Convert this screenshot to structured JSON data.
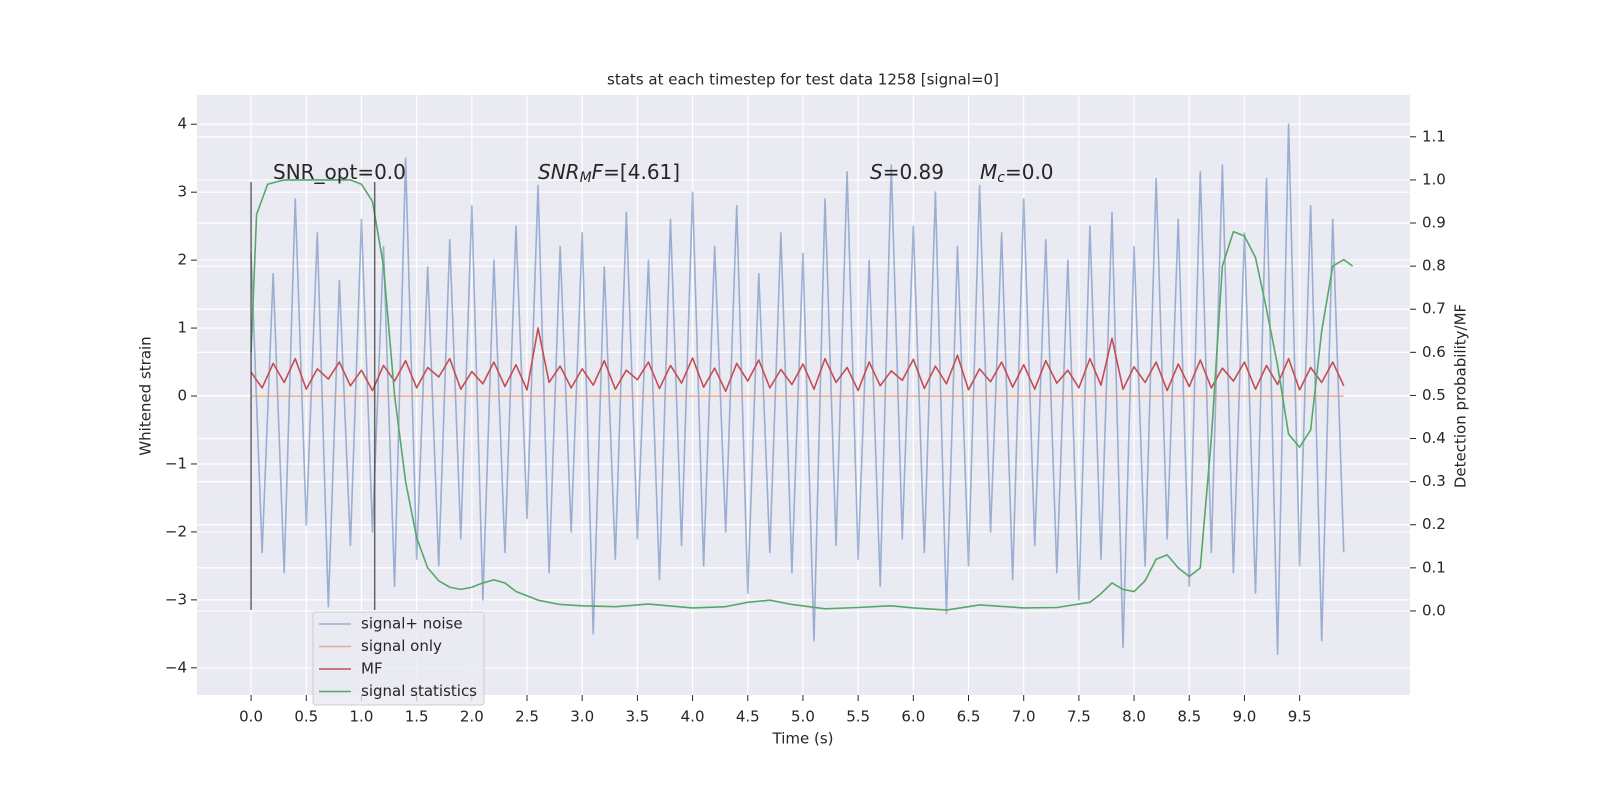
{
  "chart_data": {
    "type": "line",
    "title": "stats at each timestep for test data 1258 [signal=0]",
    "xlabel": "Time (s)",
    "ylabel": "Whitened strain",
    "y2label": "Detection probability/MF",
    "xlim": [
      -0.49,
      10.5
    ],
    "ylim": [
      -4.4,
      4.43
    ],
    "y2lim": [
      -0.195,
      1.197
    ],
    "xticks": [
      {
        "value": 0,
        "label": "0.0"
      },
      {
        "value": 0.5,
        "label": "0.5"
      },
      {
        "value": 1,
        "label": "1.0"
      },
      {
        "value": 1.5,
        "label": "1.5"
      },
      {
        "value": 2,
        "label": "2.0"
      },
      {
        "value": 2.5,
        "label": "2.5"
      },
      {
        "value": 3,
        "label": "3.0"
      },
      {
        "value": 3.5,
        "label": "3.5"
      },
      {
        "value": 4,
        "label": "4.0"
      },
      {
        "value": 4.5,
        "label": "4.5"
      },
      {
        "value": 5,
        "label": "5.0"
      },
      {
        "value": 5.5,
        "label": "5.5"
      },
      {
        "value": 6,
        "label": "6.0"
      },
      {
        "value": 6.5,
        "label": "6.5"
      },
      {
        "value": 7,
        "label": "7.0"
      },
      {
        "value": 7.5,
        "label": "7.5"
      },
      {
        "value": 8,
        "label": "8.0"
      },
      {
        "value": 8.5,
        "label": "8.5"
      },
      {
        "value": 9,
        "label": "9.0"
      },
      {
        "value": 9.5,
        "label": "9.5"
      }
    ],
    "yticks": [
      {
        "value": -4,
        "label": "−4"
      },
      {
        "value": -3,
        "label": "−3"
      },
      {
        "value": -2,
        "label": "−2"
      },
      {
        "value": -1,
        "label": "−1"
      },
      0,
      1,
      2,
      3,
      4
    ],
    "y2ticks": [
      {
        "value": 0,
        "label": "0.0"
      },
      {
        "value": 0.1,
        "label": "0.1"
      },
      {
        "value": 0.2,
        "label": "0.2"
      },
      {
        "value": 0.3,
        "label": "0.3"
      },
      {
        "value": 0.4,
        "label": "0.4"
      },
      {
        "value": 0.5,
        "label": "0.5"
      },
      {
        "value": 0.6,
        "label": "0.6"
      },
      {
        "value": 0.7,
        "label": "0.7"
      },
      {
        "value": 0.8,
        "label": "0.8"
      },
      {
        "value": 0.9,
        "label": "0.9"
      },
      {
        "value": 1,
        "label": "1.0"
      },
      {
        "value": 1.1,
        "label": "1.1"
      }
    ],
    "grid": true,
    "legend": "lower left",
    "x": [
      0.0,
      0.1,
      0.2,
      0.3,
      0.4,
      0.5,
      0.6,
      0.7,
      0.8,
      0.9,
      1.0,
      1.1,
      1.2,
      1.3,
      1.4,
      1.5,
      1.6,
      1.7,
      1.8,
      1.9,
      2.0,
      2.1,
      2.2,
      2.3,
      2.4,
      2.5,
      2.6,
      2.7,
      2.8,
      2.9,
      3.0,
      3.1,
      3.2,
      3.3,
      3.4,
      3.5,
      3.6,
      3.7,
      3.8,
      3.9,
      4.0,
      4.1,
      4.2,
      4.3,
      4.4,
      4.5,
      4.6,
      4.7,
      4.8,
      4.9,
      5.0,
      5.1,
      5.2,
      5.3,
      5.4,
      5.5,
      5.6,
      5.7,
      5.8,
      5.9,
      6.0,
      6.1,
      6.2,
      6.3,
      6.4,
      6.5,
      6.6,
      6.7,
      6.8,
      6.9,
      7.0,
      7.1,
      7.2,
      7.3,
      7.4,
      7.5,
      7.6,
      7.7,
      7.8,
      7.9,
      8.0,
      8.1,
      8.2,
      8.3,
      8.4,
      8.5,
      8.6,
      8.7,
      8.8,
      8.9,
      9.0,
      9.1,
      9.2,
      9.3,
      9.4,
      9.5,
      9.6,
      9.7,
      9.8,
      9.9
    ],
    "series": [
      {
        "name": "signal+ noise",
        "color": "#4c72b0",
        "alpha": 0.5,
        "values": [
          2.1,
          -2.3,
          1.8,
          -2.6,
          2.9,
          -1.9,
          2.4,
          -3.1,
          1.7,
          -2.2,
          2.6,
          -2.0,
          2.2,
          -2.8,
          3.5,
          -2.4,
          1.9,
          -2.5,
          2.3,
          -2.1,
          2.8,
          -3.0,
          2.0,
          -2.3,
          2.5,
          -1.8,
          3.1,
          -2.6,
          2.2,
          -2.0,
          2.4,
          -3.5,
          1.9,
          -2.4,
          2.7,
          -2.1,
          2.0,
          -2.7,
          2.6,
          -2.2,
          3.0,
          -2.5,
          2.2,
          -2.0,
          2.8,
          -2.9,
          1.8,
          -2.3,
          2.4,
          -2.6,
          2.1,
          -3.6,
          2.9,
          -2.2,
          3.3,
          -2.4,
          2.0,
          -2.8,
          3.4,
          -2.1,
          2.5,
          -2.3,
          3.0,
          -3.2,
          2.2,
          -2.5,
          3.1,
          -2.0,
          2.4,
          -2.7,
          2.9,
          -2.2,
          2.3,
          -2.6,
          2.0,
          -3.0,
          2.5,
          -2.4,
          2.7,
          -3.7,
          2.2,
          -2.5,
          3.2,
          -2.1,
          2.6,
          -2.8,
          3.3,
          -2.3,
          3.4,
          -2.6,
          2.4,
          -2.9,
          3.2,
          -3.8,
          4.0,
          -2.5,
          2.8,
          -3.6,
          2.6,
          -2.3
        ]
      },
      {
        "name": "signal only",
        "color": "#dd8452",
        "alpha": 0.6,
        "values": [
          0,
          0,
          0,
          0,
          0,
          0,
          0,
          0,
          0,
          0,
          0,
          0,
          0,
          0,
          0,
          0,
          0,
          0,
          0,
          0,
          0,
          0,
          0,
          0,
          0,
          0,
          0,
          0,
          0,
          0,
          0,
          0,
          0,
          0,
          0,
          0,
          0,
          0,
          0,
          0,
          0,
          0,
          0,
          0,
          0,
          0,
          0,
          0,
          0,
          0,
          0,
          0,
          0,
          0,
          0,
          0,
          0,
          0,
          0,
          0,
          0,
          0,
          0,
          0,
          0,
          0,
          0,
          0,
          0,
          0,
          0,
          0,
          0,
          0,
          0,
          0,
          0,
          0,
          0,
          0,
          0,
          0,
          0,
          0,
          0,
          0,
          0,
          0,
          0,
          0,
          0,
          0,
          0,
          0,
          0,
          0,
          0,
          0,
          0,
          0
        ]
      },
      {
        "name": "MF",
        "color": "#c44e52",
        "alpha": 1,
        "values": [
          0.35,
          0.12,
          0.48,
          0.2,
          0.55,
          0.1,
          0.4,
          0.25,
          0.5,
          0.15,
          0.38,
          0.08,
          0.45,
          0.22,
          0.52,
          0.12,
          0.42,
          0.28,
          0.55,
          0.1,
          0.36,
          0.18,
          0.5,
          0.14,
          0.46,
          0.09,
          1.0,
          0.2,
          0.44,
          0.12,
          0.4,
          0.16,
          0.52,
          0.1,
          0.38,
          0.24,
          0.5,
          0.11,
          0.45,
          0.19,
          0.56,
          0.13,
          0.41,
          0.07,
          0.48,
          0.22,
          0.53,
          0.12,
          0.39,
          0.17,
          0.47,
          0.1,
          0.55,
          0.2,
          0.42,
          0.08,
          0.5,
          0.15,
          0.37,
          0.23,
          0.54,
          0.11,
          0.44,
          0.18,
          0.6,
          0.09,
          0.4,
          0.21,
          0.5,
          0.13,
          0.46,
          0.1,
          0.52,
          0.19,
          0.38,
          0.12,
          0.55,
          0.16,
          0.85,
          0.1,
          0.43,
          0.2,
          0.5,
          0.08,
          0.47,
          0.14,
          0.53,
          0.12,
          0.41,
          0.22,
          0.5,
          0.1,
          0.45,
          0.17,
          0.55,
          0.09,
          0.42,
          0.2,
          0.5,
          0.15
        ]
      },
      {
        "name": "signal statistics",
        "color": "#55a868",
        "alpha": 1,
        "axis": "y2",
        "x": [
          0.0,
          0.05,
          0.15,
          0.3,
          0.5,
          0.7,
          0.9,
          1.0,
          1.1,
          1.2,
          1.3,
          1.4,
          1.5,
          1.6,
          1.7,
          1.8,
          1.9,
          2.0,
          2.1,
          2.2,
          2.3,
          2.4,
          2.6,
          2.8,
          3.0,
          3.3,
          3.6,
          4.0,
          4.3,
          4.5,
          4.7,
          4.9,
          5.2,
          5.5,
          5.8,
          6.0,
          6.3,
          6.6,
          7.0,
          7.3,
          7.6,
          7.7,
          7.8,
          7.9,
          8.0,
          8.1,
          8.2,
          8.3,
          8.4,
          8.5,
          8.6,
          8.7,
          8.8,
          8.9,
          9.0,
          9.1,
          9.2,
          9.3,
          9.4,
          9.5,
          9.6,
          9.7,
          9.8,
          9.9,
          9.98
        ],
        "values": [
          0.6,
          0.92,
          0.99,
          1.0,
          1.0,
          1.0,
          1.0,
          0.99,
          0.95,
          0.8,
          0.5,
          0.3,
          0.17,
          0.1,
          0.07,
          0.055,
          0.05,
          0.055,
          0.065,
          0.072,
          0.065,
          0.045,
          0.025,
          0.015,
          0.012,
          0.01,
          0.016,
          0.007,
          0.01,
          0.02,
          0.025,
          0.015,
          0.005,
          0.008,
          0.012,
          0.007,
          0.002,
          0.014,
          0.007,
          0.008,
          0.02,
          0.04,
          0.065,
          0.05,
          0.045,
          0.07,
          0.12,
          0.13,
          0.1,
          0.08,
          0.1,
          0.4,
          0.8,
          0.88,
          0.87,
          0.82,
          0.7,
          0.57,
          0.41,
          0.38,
          0.42,
          0.65,
          0.8,
          0.815,
          0.8
        ]
      }
    ],
    "vlines": {
      "x": [
        0,
        1.12
      ],
      "ymin": -3.15,
      "ymax": 3.15,
      "color": "#444444"
    },
    "annotations": [
      {
        "parts": [
          {
            "text": "SNR_opt=0.0"
          }
        ]
      },
      {
        "parts": [
          {
            "text": "SNR",
            "italic": true
          },
          {
            "text": "M",
            "italic": true,
            "sub": true
          },
          {
            "text": "F",
            "italic": true
          },
          {
            "text": "=[4.61]"
          }
        ]
      },
      {
        "parts": [
          {
            "text": "S",
            "italic": true
          },
          {
            "text": "=0.89"
          }
        ]
      },
      {
        "parts": [
          {
            "text": "M",
            "italic": true
          },
          {
            "text": "c",
            "italic": true,
            "sub": true
          },
          {
            "text": "=0.0"
          }
        ]
      }
    ]
  }
}
